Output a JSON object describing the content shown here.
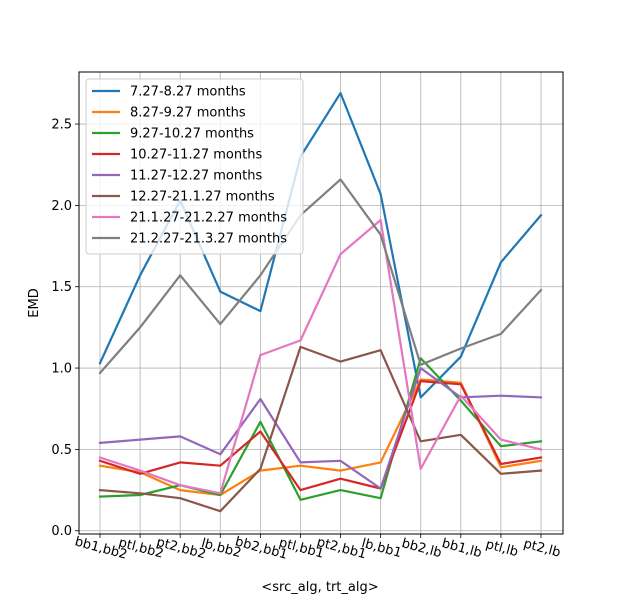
{
  "chart_data": {
    "type": "line",
    "title": "",
    "xlabel": "<src_alg, trt_alg>",
    "ylabel": "EMD",
    "categories": [
      "bb1,bb2",
      "ptl,bb2",
      "pt2,bb2",
      "lb,bb2",
      "bb2,bb1",
      "ptl,bb1",
      "pt2,bb1",
      "lb,bb1",
      "bb2,lb",
      "bb1,lb",
      "ptl,lb",
      "pt2,lb"
    ],
    "ylim": [
      -0.02,
      2.82
    ],
    "yticks": [
      0.0,
      0.5,
      1.0,
      1.5,
      2.0,
      2.5
    ],
    "ytick_labels": [
      "0.0",
      "0.5",
      "1.0",
      "1.5",
      "2.0",
      "2.5"
    ],
    "grid": true,
    "legend_position": "upper-left",
    "series": [
      {
        "name": "7.27-8.27 months",
        "color": "#1f77b4",
        "values": [
          1.03,
          1.57,
          2.03,
          1.47,
          1.35,
          2.3,
          2.69,
          2.07,
          0.82,
          1.07,
          1.65,
          1.94
        ]
      },
      {
        "name": "8.27-9.27 months",
        "color": "#ff7f0e",
        "values": [
          0.4,
          0.36,
          0.25,
          0.22,
          0.37,
          0.4,
          0.37,
          0.42,
          0.93,
          0.91,
          0.39,
          0.43
        ]
      },
      {
        "name": "9.27-10.27 months",
        "color": "#2ca02c",
        "values": [
          0.21,
          0.22,
          0.28,
          0.22,
          0.67,
          0.19,
          0.25,
          0.2,
          1.06,
          0.8,
          0.52,
          0.55
        ]
      },
      {
        "name": "10.27-11.27 months",
        "color": "#d62728",
        "values": [
          0.43,
          0.35,
          0.42,
          0.4,
          0.61,
          0.25,
          0.32,
          0.26,
          0.92,
          0.9,
          0.41,
          0.45
        ]
      },
      {
        "name": "11.27-12.27 months",
        "color": "#9467bd",
        "values": [
          0.54,
          0.56,
          0.58,
          0.47,
          0.81,
          0.42,
          0.43,
          0.26,
          1.0,
          0.82,
          0.83,
          0.82
        ]
      },
      {
        "name": "12.27-21.1.27 months",
        "color": "#8c564b",
        "values": [
          0.25,
          0.23,
          0.2,
          0.12,
          0.38,
          1.13,
          1.04,
          1.11,
          0.55,
          0.59,
          0.35,
          0.37
        ]
      },
      {
        "name": "21.1.27-21.2.27 months",
        "color": "#e377c2",
        "values": [
          0.45,
          0.37,
          0.28,
          0.23,
          1.08,
          1.17,
          1.7,
          1.91,
          0.38,
          0.83,
          0.56,
          0.5
        ]
      },
      {
        "name": "21.2.27-21.3.27 months",
        "color": "#7f7f7f",
        "values": [
          0.97,
          1.25,
          1.57,
          1.27,
          1.57,
          1.94,
          2.16,
          1.82,
          1.02,
          1.12,
          1.21,
          1.48
        ]
      }
    ]
  }
}
